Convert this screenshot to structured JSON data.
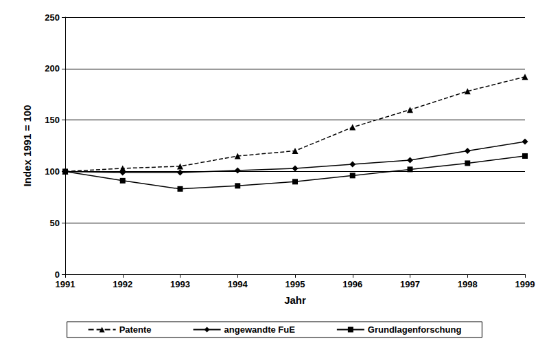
{
  "chart_data": {
    "type": "line",
    "x_label": "Jahr",
    "y_label": "Index 1991 = 100",
    "categories": [
      "1991",
      "1992",
      "1993",
      "1994",
      "1995",
      "1996",
      "1997",
      "1998",
      "1999"
    ],
    "series": [
      {
        "name": "Patente",
        "color": "#000000",
        "marker": "triangle",
        "line_style": "dashed",
        "values": [
          100,
          103,
          105,
          115,
          120,
          143,
          160,
          178,
          192
        ]
      },
      {
        "name": "angewandte FuE",
        "color": "#000000",
        "marker": "diamond",
        "line_style": "solid",
        "values": [
          100,
          99,
          99,
          101,
          103,
          107,
          111,
          120,
          129
        ]
      },
      {
        "name": "Grundlagenforschung",
        "color": "#000000",
        "marker": "square",
        "line_style": "solid",
        "values": [
          100,
          91,
          83,
          86,
          90,
          96,
          102,
          108,
          115
        ]
      }
    ],
    "ylim": [
      0,
      250
    ],
    "yticks": [
      0,
      50,
      100,
      150,
      200,
      250
    ],
    "grid": true,
    "legend": "bottom"
  }
}
